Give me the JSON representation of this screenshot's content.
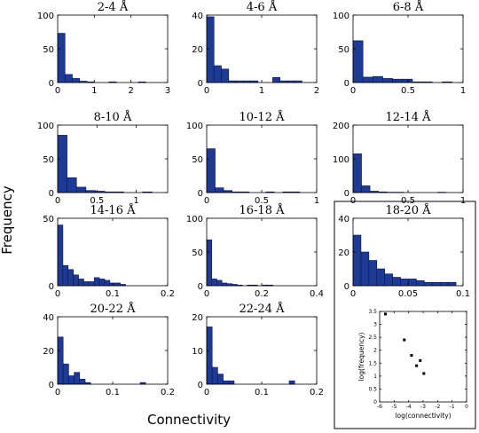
{
  "figure": {
    "ylabel": "Frequency",
    "xlabel": "Connectivity"
  },
  "colors": {
    "bar": "#1f3a93",
    "bar_edge": "#0b1550"
  },
  "chart_data": [
    {
      "type": "bar",
      "title": "2-4 Å",
      "xlim": [
        0,
        3
      ],
      "ylim": [
        0,
        100
      ],
      "xticks": [
        "0",
        "1",
        "2",
        "3"
      ],
      "yticks": [
        "0",
        "50",
        "100"
      ],
      "bin_width": 0.2,
      "bin_starts": [
        0,
        0.2,
        0.4,
        0.6,
        0.8,
        1.0,
        1.2,
        1.4,
        1.6,
        1.8,
        2.0,
        2.2
      ],
      "values": [
        73,
        12,
        6,
        2,
        1,
        0,
        0,
        1,
        0,
        0,
        0,
        1
      ]
    },
    {
      "type": "bar",
      "title": "4-6 Å",
      "xlim": [
        0,
        2
      ],
      "ylim": [
        0,
        40
      ],
      "xticks": [
        "0",
        "1",
        "2"
      ],
      "yticks": [
        "0",
        "20",
        "40"
      ],
      "bin_width": 0.133,
      "bin_starts": [
        0,
        0.133,
        0.267,
        0.4,
        0.533,
        0.667,
        0.8,
        0.933,
        1.067,
        1.2,
        1.333,
        1.467,
        1.6
      ],
      "values": [
        39,
        10,
        8,
        1,
        1,
        1,
        1,
        0,
        0,
        3,
        1,
        1,
        1
      ]
    },
    {
      "type": "bar",
      "title": "6-8 Å",
      "xlim": [
        0,
        1
      ],
      "ylim": [
        0,
        100
      ],
      "xticks": [
        "0",
        "0.5",
        "1"
      ],
      "yticks": [
        "0",
        "50",
        "100"
      ],
      "bin_width": 0.09,
      "bin_starts": [
        0,
        0.09,
        0.18,
        0.27,
        0.36,
        0.45,
        0.54,
        0.63,
        0.72,
        0.81
      ],
      "values": [
        62,
        8,
        9,
        6,
        5,
        5,
        1,
        1,
        0,
        1
      ]
    },
    {
      "type": "bar",
      "title": "8-10 Å",
      "xlim": [
        0,
        1.4
      ],
      "ylim": [
        0,
        100
      ],
      "xticks": [
        "0",
        "0.5",
        "1"
      ],
      "yticks": [
        "0",
        "50",
        "100"
      ],
      "bin_width": 0.12,
      "bin_starts": [
        0,
        0.12,
        0.24,
        0.36,
        0.48,
        0.6,
        0.72,
        0.84,
        0.96,
        1.08
      ],
      "values": [
        85,
        22,
        8,
        3,
        2,
        1,
        1,
        0,
        0,
        1
      ]
    },
    {
      "type": "bar",
      "title": "10-12 Å",
      "xlim": [
        0,
        1
      ],
      "ylim": [
        0,
        100
      ],
      "xticks": [
        "0",
        "0.5",
        "1"
      ],
      "yticks": [
        "0",
        "50",
        "100"
      ],
      "bin_width": 0.077,
      "bin_starts": [
        0,
        0.077,
        0.154,
        0.231,
        0.308,
        0.385,
        0.462,
        0.538,
        0.615,
        0.692,
        0.769
      ],
      "values": [
        65,
        7,
        3,
        1,
        1,
        0,
        0,
        1,
        0,
        1,
        1
      ]
    },
    {
      "type": "bar",
      "title": "12-14 Å",
      "xlim": [
        0,
        1
      ],
      "ylim": [
        0,
        200
      ],
      "xticks": [
        "0",
        "0.5",
        "1"
      ],
      "yticks": [
        "0",
        "100",
        "200"
      ],
      "bin_width": 0.077,
      "bin_starts": [
        0,
        0.077,
        0.154,
        0.231,
        0.308,
        0.385,
        0.462,
        0.538,
        0.615,
        0.692,
        0.769
      ],
      "values": [
        115,
        20,
        4,
        2,
        1,
        1,
        0,
        0,
        0,
        0,
        1
      ]
    },
    {
      "type": "bar",
      "title": "14-16 Å",
      "xlim": [
        0,
        0.2
      ],
      "ylim": [
        0,
        50
      ],
      "xticks": [
        "0",
        "0.1",
        "0.2"
      ],
      "yticks": [
        "0",
        "50"
      ],
      "bin_width": 0.0095,
      "bin_starts": [
        0,
        0.0095,
        0.019,
        0.0285,
        0.038,
        0.0475,
        0.057,
        0.0665,
        0.076,
        0.0855,
        0.095,
        0.1045,
        0.114
      ],
      "values": [
        45,
        15,
        12,
        8,
        5,
        3,
        3,
        6,
        5,
        4,
        2,
        2,
        1
      ]
    },
    {
      "type": "bar",
      "title": "16-18 Å",
      "xlim": [
        0,
        0.4
      ],
      "ylim": [
        0,
        100
      ],
      "xticks": [
        "0",
        "0.2",
        "0.4"
      ],
      "yticks": [
        "0",
        "50",
        "100"
      ],
      "bin_width": 0.0185,
      "bin_starts": [
        0,
        0.0185,
        0.037,
        0.0555,
        0.074,
        0.0925,
        0.111,
        0.1295,
        0.148,
        0.1665,
        0.185,
        0.2035,
        0.222
      ],
      "values": [
        68,
        10,
        8,
        4,
        3,
        2,
        1,
        0,
        1,
        1,
        0,
        1,
        1
      ]
    },
    {
      "type": "bar",
      "title": "18-20 Å",
      "xlim": [
        0,
        0.1
      ],
      "ylim": [
        0,
        40
      ],
      "xticks": [
        "0",
        "0.05",
        "0.1"
      ],
      "yticks": [
        "0",
        "20",
        "40"
      ],
      "bin_width": 0.0072,
      "bin_starts": [
        0,
        0.0072,
        0.0144,
        0.0216,
        0.0288,
        0.036,
        0.0432,
        0.0504,
        0.0576,
        0.0648,
        0.072,
        0.0792,
        0.0864
      ],
      "values": [
        30,
        20,
        15,
        10,
        7,
        5,
        4,
        4,
        3,
        2,
        2,
        2,
        2
      ]
    },
    {
      "type": "bar",
      "title": "20-22 Å",
      "xlim": [
        0,
        0.2
      ],
      "ylim": [
        0,
        40
      ],
      "xticks": [
        "0",
        "0.1",
        "0.2"
      ],
      "yticks": [
        "0",
        "20",
        "40"
      ],
      "bin_width": 0.01,
      "bin_starts": [
        0,
        0.01,
        0.02,
        0.03,
        0.04,
        0.05,
        0.06,
        0.07,
        0.08,
        0.09,
        0.1,
        0.11,
        0.12,
        0.13,
        0.14,
        0.15
      ],
      "values": [
        28,
        12,
        5,
        7,
        3,
        1,
        0,
        0,
        0,
        0,
        0,
        0,
        0,
        0,
        0,
        1
      ]
    },
    {
      "type": "bar",
      "title": "22-24 Å",
      "xlim": [
        0,
        0.2
      ],
      "ylim": [
        0,
        20
      ],
      "xticks": [
        "0",
        "0.1",
        "0.2"
      ],
      "yticks": [
        "0",
        "10",
        "20"
      ],
      "bin_width": 0.01,
      "bin_starts": [
        0,
        0.01,
        0.02,
        0.03,
        0.04,
        0.05,
        0.06,
        0.07,
        0.08,
        0.09,
        0.1,
        0.11,
        0.12,
        0.13,
        0.14,
        0.15
      ],
      "values": [
        17,
        5,
        3,
        1,
        1,
        0,
        0,
        0,
        0,
        0,
        0,
        0,
        0,
        0,
        0,
        1
      ]
    },
    {
      "type": "scatter",
      "inset": true,
      "xlabel": "log(connectivity)",
      "ylabel": "log(frequency)",
      "xlim": [
        -6,
        0
      ],
      "ylim": [
        0,
        3.5
      ],
      "xticks": [
        "-6",
        "-5",
        "-4",
        "-3",
        "-2",
        "-1",
        "0"
      ],
      "yticks": [
        "0",
        "0.5",
        "1",
        "1.5",
        "2",
        "2.5",
        "3",
        "3.5"
      ],
      "x": [
        -5.6,
        -4.3,
        -3.8,
        -3.45,
        -3.2,
        -2.95
      ],
      "y": [
        3.4,
        2.4,
        1.8,
        1.4,
        1.6,
        1.1
      ]
    }
  ]
}
